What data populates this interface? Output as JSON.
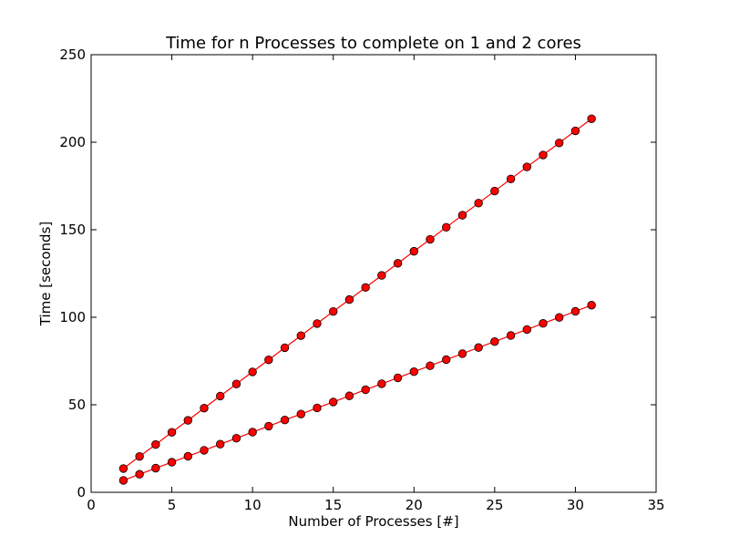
{
  "chart_data": {
    "type": "line",
    "title": "Time for n Processes to complete on 1 and 2 cores",
    "xlabel": "Number of Processes [#]",
    "ylabel": "Time [seconds]",
    "xlim": [
      0,
      35
    ],
    "ylim": [
      0,
      250
    ],
    "x_ticks": [
      0,
      5,
      10,
      15,
      20,
      25,
      30,
      35
    ],
    "y_ticks": [
      0,
      50,
      100,
      150,
      200,
      250
    ],
    "grid": false,
    "legend": "none",
    "x": [
      2,
      3,
      4,
      5,
      6,
      7,
      8,
      9,
      10,
      11,
      12,
      13,
      14,
      15,
      16,
      17,
      18,
      19,
      20,
      21,
      22,
      23,
      24,
      25,
      26,
      27,
      28,
      29,
      30,
      31
    ],
    "series": [
      {
        "color": "#ff0000",
        "values": [
          13.6,
          20.5,
          27.3,
          34.3,
          41.1,
          48.1,
          55.0,
          61.9,
          68.8,
          75.7,
          82.6,
          89.5,
          96.4,
          103.3,
          110.1,
          117.0,
          123.9,
          130.8,
          137.7,
          144.5,
          151.4,
          158.3,
          165.2,
          172.1,
          179.0,
          185.9,
          192.7,
          199.6,
          206.5,
          213.4
        ]
      },
      {
        "color": "#ff0000",
        "values": [
          6.8,
          10.3,
          13.8,
          17.2,
          20.6,
          24.0,
          27.5,
          30.9,
          34.4,
          37.8,
          41.3,
          44.7,
          48.2,
          51.6,
          55.1,
          58.6,
          62.0,
          65.4,
          68.9,
          72.3,
          75.8,
          79.2,
          82.7,
          86.1,
          89.6,
          93.0,
          96.5,
          99.9,
          103.4,
          106.9
        ]
      }
    ]
  }
}
